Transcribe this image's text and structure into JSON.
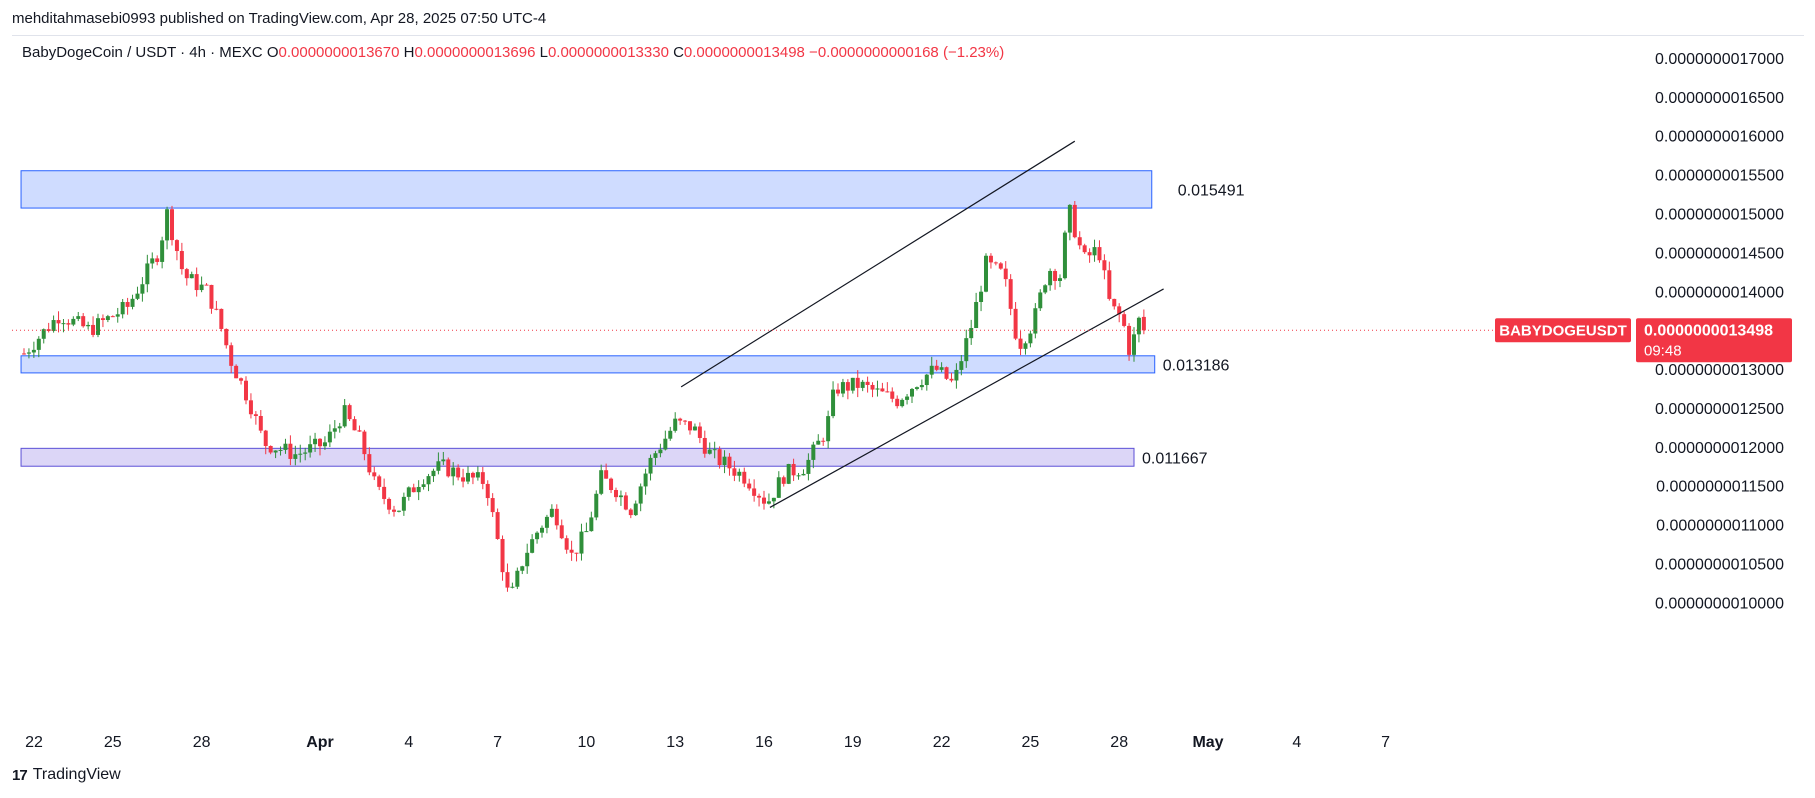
{
  "publisher_line": "mehditahmasebi0993 published on TradingView.com, Apr 28, 2025 07:50 UTC-4",
  "footer": {
    "brand": "TradingView"
  },
  "colors": {
    "up": "#2f8f3a",
    "down": "#f23645",
    "zone_blue_fill": "#cfdcff",
    "zone_blue_stroke": "#2962ff",
    "zone_purple_fill": "#dcd6f7",
    "zone_purple_stroke": "#5b4fd6",
    "price_tag": "#f23645"
  },
  "chart_data": {
    "type": "candlestick",
    "legend": {
      "symbol": "BabyDogeCoin / USDT · 4h · MEXC",
      "open_label": "O",
      "open": "0.0000000013670",
      "high_label": "H",
      "high": "0.0000000013696",
      "low_label": "L",
      "low": "0.0000000013330",
      "close_label": "C",
      "close": "0.0000000013498",
      "change": "−0.0000000000168 (−1.23%)"
    },
    "x_ticks": [
      "22",
      "25",
      "28",
      "Apr",
      "4",
      "7",
      "10",
      "13",
      "16",
      "19",
      "22",
      "25",
      "28",
      "May",
      "4",
      "7"
    ],
    "y_ticks": [
      "0.0000000017000",
      "0.0000000016500",
      "0.0000000016000",
      "0.0000000015500",
      "0.0000000015000",
      "0.0000000014500",
      "0.0000000014000",
      "0.0000000013000",
      "0.0000000012500",
      "0.0000000012000",
      "0.0000000011500",
      "0.0000000011000",
      "0.0000000010500",
      "0.0000000010000"
    ],
    "y_range": [
      0.95,
      1.72
    ],
    "y_unit_note": "values in units of 1e-9 USDT",
    "x_range_days": [
      -0.1,
      47.0
    ],
    "x_origin": "Mar 22",
    "zones": [
      {
        "label": "0.015491",
        "y_bottom": 1.507,
        "y_top": 1.555,
        "x_start": -0.1,
        "x_end": 38.1,
        "style": "blue"
      },
      {
        "label": "0.013186",
        "y_bottom": 1.295,
        "y_top": 1.317,
        "x_start": -0.1,
        "x_end": 38.2,
        "style": "blue"
      },
      {
        "label": "0.011667",
        "y_bottom": 1.175,
        "y_top": 1.198,
        "x_start": -0.1,
        "x_end": 37.5,
        "style": "purple"
      }
    ],
    "channel_lines": [
      {
        "x1": 22.2,
        "y1": 1.277,
        "x2": 35.5,
        "y2": 1.593
      },
      {
        "x1": 25.2,
        "y1": 1.122,
        "x2": 38.5,
        "y2": 1.403
      }
    ],
    "last_price": {
      "symbol": "BABYDOGEUSDT",
      "value": "0.0000000013498",
      "countdown": "09:48",
      "y": 1.3498
    },
    "key_points": [
      {
        "x": 0.0,
        "y": 1.32
      },
      {
        "x": 1.2,
        "y": 1.37
      },
      {
        "x": 2.2,
        "y": 1.35
      },
      {
        "x": 3.5,
        "y": 1.38
      },
      {
        "x": 4.6,
        "y": 1.455
      },
      {
        "x": 4.8,
        "y": 1.505
      },
      {
        "x": 5.4,
        "y": 1.42
      },
      {
        "x": 6.2,
        "y": 1.4
      },
      {
        "x": 6.6,
        "y": 1.36
      },
      {
        "x": 7.0,
        "y": 1.31
      },
      {
        "x": 7.6,
        "y": 1.26
      },
      {
        "x": 8.1,
        "y": 1.205
      },
      {
        "x": 9.2,
        "y": 1.19
      },
      {
        "x": 10.2,
        "y": 1.205
      },
      {
        "x": 10.8,
        "y": 1.245
      },
      {
        "x": 11.4,
        "y": 1.205
      },
      {
        "x": 11.9,
        "y": 1.145
      },
      {
        "x": 12.6,
        "y": 1.118
      },
      {
        "x": 13.4,
        "y": 1.16
      },
      {
        "x": 14.1,
        "y": 1.175
      },
      {
        "x": 15.0,
        "y": 1.16
      },
      {
        "x": 15.6,
        "y": 1.155
      },
      {
        "x": 16.1,
        "y": 1.06
      },
      {
        "x": 16.4,
        "y": 1.0
      },
      {
        "x": 16.9,
        "y": 1.06
      },
      {
        "x": 17.4,
        "y": 1.095
      },
      {
        "x": 17.9,
        "y": 1.12
      },
      {
        "x": 18.5,
        "y": 1.06
      },
      {
        "x": 19.0,
        "y": 1.09
      },
      {
        "x": 19.5,
        "y": 1.16
      },
      {
        "x": 20.0,
        "y": 1.145
      },
      {
        "x": 20.5,
        "y": 1.12
      },
      {
        "x": 21.2,
        "y": 1.185
      },
      {
        "x": 22.0,
        "y": 1.23
      },
      {
        "x": 22.6,
        "y": 1.225
      },
      {
        "x": 23.2,
        "y": 1.19
      },
      {
        "x": 23.8,
        "y": 1.175
      },
      {
        "x": 24.4,
        "y": 1.16
      },
      {
        "x": 25.1,
        "y": 1.128
      },
      {
        "x": 25.7,
        "y": 1.165
      },
      {
        "x": 26.4,
        "y": 1.175
      },
      {
        "x": 27.1,
        "y": 1.222
      },
      {
        "x": 27.4,
        "y": 1.275
      },
      {
        "x": 28.2,
        "y": 1.28
      },
      {
        "x": 28.8,
        "y": 1.27
      },
      {
        "x": 29.5,
        "y": 1.26
      },
      {
        "x": 30.2,
        "y": 1.285
      },
      {
        "x": 30.8,
        "y": 1.3
      },
      {
        "x": 31.4,
        "y": 1.28
      },
      {
        "x": 32.0,
        "y": 1.355
      },
      {
        "x": 32.5,
        "y": 1.435
      },
      {
        "x": 33.1,
        "y": 1.42
      },
      {
        "x": 33.6,
        "y": 1.33
      },
      {
        "x": 34.1,
        "y": 1.36
      },
      {
        "x": 34.6,
        "y": 1.43
      },
      {
        "x": 35.0,
        "y": 1.42
      },
      {
        "x": 35.3,
        "y": 1.505
      },
      {
        "x": 35.8,
        "y": 1.44
      },
      {
        "x": 36.3,
        "y": 1.455
      },
      {
        "x": 36.7,
        "y": 1.38
      },
      {
        "x": 37.1,
        "y": 1.365
      },
      {
        "x": 37.4,
        "y": 1.315
      },
      {
        "x": 37.6,
        "y": 1.365
      },
      {
        "x": 37.9,
        "y": 1.35
      }
    ]
  }
}
